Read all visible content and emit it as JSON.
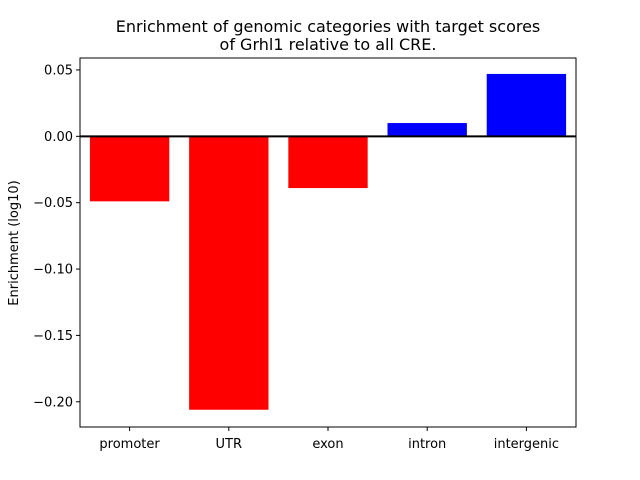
{
  "chart_data": {
    "type": "bar",
    "title_lines": [
      "Enrichment of genomic categories with target scores",
      "of Grhl1 relative to all CRE."
    ],
    "xlabel": "",
    "ylabel": "Enrichment (log10)",
    "categories": [
      "promoter",
      "UTR",
      "exon",
      "intron",
      "intergenic"
    ],
    "values": [
      -0.049,
      -0.206,
      -0.039,
      0.01,
      0.047
    ],
    "colors": [
      "#ff0000",
      "#ff0000",
      "#ff0000",
      "#0000ff",
      "#0000ff"
    ],
    "ylim": [
      -0.219,
      0.059
    ],
    "yticks": [
      0.05,
      0.0,
      -0.05,
      -0.1,
      -0.15,
      -0.2
    ],
    "ytick_labels": [
      "0.05",
      "0.00",
      "−0.05",
      "−0.10",
      "−0.15",
      "−0.20"
    ],
    "grid": false,
    "zero_line": true
  }
}
